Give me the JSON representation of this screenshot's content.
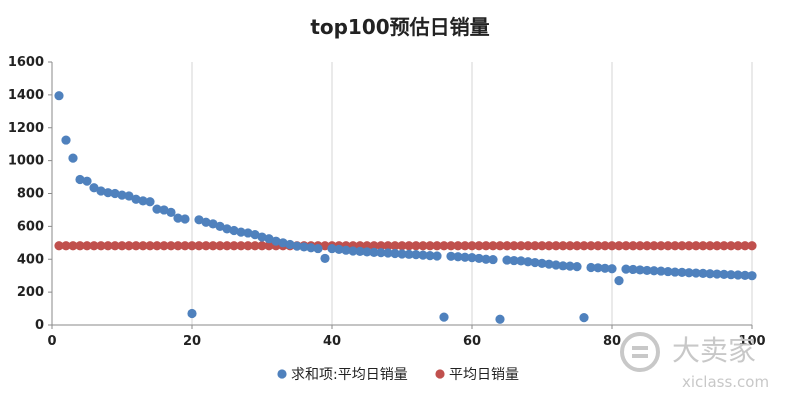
{
  "chart_data": {
    "type": "scatter",
    "title": "top100预估日销量",
    "xlim": [
      0,
      100
    ],
    "ylim": [
      0,
      1600
    ],
    "x_ticks": [
      0,
      20,
      40,
      60,
      80,
      100
    ],
    "y_ticks": [
      0,
      200,
      400,
      600,
      800,
      1000,
      1200,
      1400,
      1600
    ],
    "grid": "vertical",
    "legend_position": "bottom",
    "series": [
      {
        "name": "求和项:平均日销量",
        "color": "#4f81bd",
        "x": [
          1,
          2,
          3,
          4,
          5,
          6,
          7,
          8,
          9,
          10,
          11,
          12,
          13,
          14,
          15,
          16,
          17,
          18,
          19,
          20,
          21,
          22,
          23,
          24,
          25,
          26,
          27,
          28,
          29,
          30,
          31,
          32,
          33,
          34,
          35,
          36,
          37,
          38,
          39,
          40,
          41,
          42,
          43,
          44,
          45,
          46,
          47,
          48,
          49,
          50,
          51,
          52,
          53,
          54,
          55,
          56,
          57,
          58,
          59,
          60,
          61,
          62,
          63,
          64,
          65,
          66,
          67,
          68,
          69,
          70,
          71,
          72,
          73,
          74,
          75,
          76,
          77,
          78,
          79,
          80,
          81,
          82,
          83,
          84,
          85,
          86,
          87,
          88,
          89,
          90,
          91,
          92,
          93,
          94,
          95,
          96,
          97,
          98,
          99,
          100
        ],
        "y": [
          1395,
          1125,
          1015,
          885,
          875,
          835,
          815,
          805,
          800,
          790,
          785,
          765,
          755,
          750,
          705,
          700,
          685,
          650,
          645,
          70,
          640,
          625,
          615,
          600,
          585,
          575,
          565,
          560,
          550,
          535,
          525,
          510,
          500,
          490,
          480,
          475,
          470,
          465,
          405,
          465,
          460,
          455,
          450,
          448,
          445,
          442,
          440,
          438,
          435,
          432,
          430,
          428,
          425,
          422,
          420,
          48,
          418,
          415,
          412,
          410,
          405,
          400,
          398,
          35,
          395,
          392,
          390,
          385,
          380,
          375,
          370,
          365,
          360,
          358,
          355,
          45,
          350,
          348,
          345,
          342,
          270,
          340,
          338,
          335,
          332,
          330,
          328,
          325,
          322,
          320,
          318,
          316,
          314,
          312,
          310,
          308,
          306,
          304,
          302,
          300
        ]
      },
      {
        "name": "平均日销量",
        "color": "#c0504d",
        "x": [
          1,
          2,
          3,
          4,
          5,
          6,
          7,
          8,
          9,
          10,
          11,
          12,
          13,
          14,
          15,
          16,
          17,
          18,
          19,
          20,
          21,
          22,
          23,
          24,
          25,
          26,
          27,
          28,
          29,
          30,
          31,
          32,
          33,
          34,
          35,
          36,
          37,
          38,
          39,
          40,
          41,
          42,
          43,
          44,
          45,
          46,
          47,
          48,
          49,
          50,
          51,
          52,
          53,
          54,
          55,
          56,
          57,
          58,
          59,
          60,
          61,
          62,
          63,
          64,
          65,
          66,
          67,
          68,
          69,
          70,
          71,
          72,
          73,
          74,
          75,
          76,
          77,
          78,
          79,
          80,
          81,
          82,
          83,
          84,
          85,
          86,
          87,
          88,
          89,
          90,
          91,
          92,
          93,
          94,
          95,
          96,
          97,
          98,
          99,
          100
        ],
        "y": [
          482,
          482,
          482,
          482,
          482,
          482,
          482,
          482,
          482,
          482,
          482,
          482,
          482,
          482,
          482,
          482,
          482,
          482,
          482,
          482,
          482,
          482,
          482,
          482,
          482,
          482,
          482,
          482,
          482,
          482,
          482,
          482,
          482,
          482,
          482,
          482,
          482,
          482,
          482,
          482,
          482,
          482,
          482,
          482,
          482,
          482,
          482,
          482,
          482,
          482,
          482,
          482,
          482,
          482,
          482,
          482,
          482,
          482,
          482,
          482,
          482,
          482,
          482,
          482,
          482,
          482,
          482,
          482,
          482,
          482,
          482,
          482,
          482,
          482,
          482,
          482,
          482,
          482,
          482,
          482,
          482,
          482,
          482,
          482,
          482,
          482,
          482,
          482,
          482,
          482,
          482,
          482,
          482,
          482,
          482,
          482,
          482,
          482,
          482,
          482
        ]
      }
    ]
  },
  "watermark": {
    "text": "大卖家",
    "sub": "xiclass.com"
  }
}
